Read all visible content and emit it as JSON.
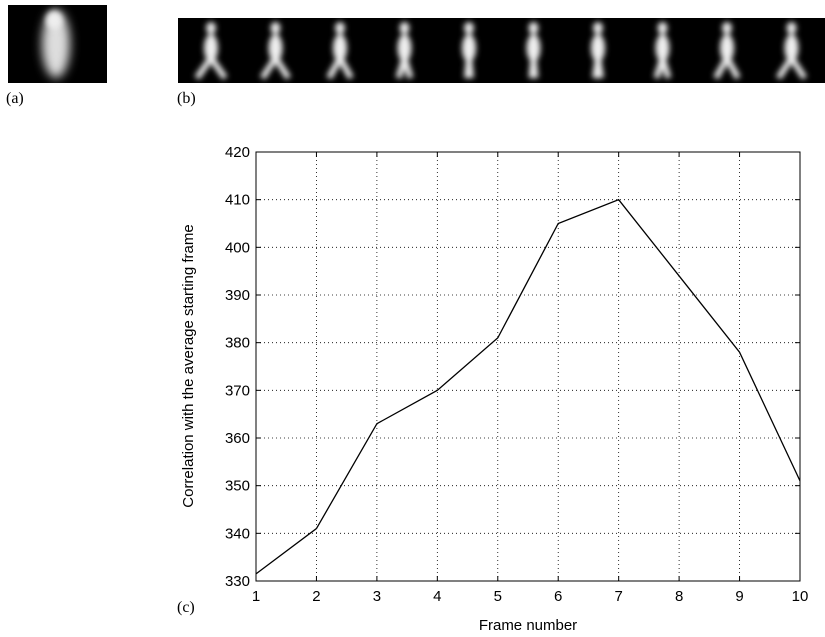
{
  "panel_labels": [
    "(a)",
    "(b)",
    "(c)"
  ],
  "chart_data": {
    "type": "line",
    "xlabel": "Frame number",
    "ylabel": "Correlation with the average starting frame",
    "x": [
      1,
      2,
      3,
      4,
      5,
      6,
      7,
      8,
      9,
      10
    ],
    "series": [
      {
        "color": "#000000",
        "values": [
          331.5,
          341,
          363,
          370,
          381,
          405,
          410,
          394,
          378,
          351
        ]
      }
    ],
    "xlim": [
      1,
      10
    ],
    "xticks": [
      1,
      2,
      3,
      4,
      5,
      6,
      7,
      8,
      9,
      10
    ],
    "ylim": [
      330,
      420
    ],
    "yticks": [
      330,
      340,
      350,
      360,
      370,
      380,
      390,
      400,
      410,
      420
    ],
    "grid": true
  }
}
